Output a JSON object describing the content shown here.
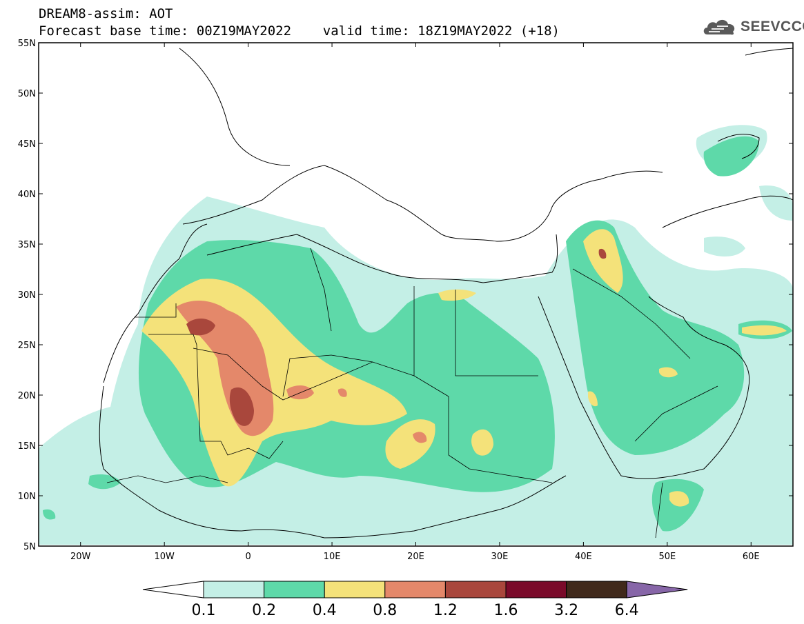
{
  "header": {
    "line1": "DREAM8-assim: AOT",
    "line2": "Forecast base time: 00Z19MAY2022    valid time: 18Z19MAY2022 (+18)"
  },
  "logo": {
    "text": "SEEVCCC",
    "icon": "cloud-icon",
    "color": "#555555"
  },
  "map": {
    "lon_range": [
      -25,
      65
    ],
    "lat_range": [
      5,
      55
    ],
    "lat_ticks": [
      {
        "value": 55,
        "label": "55N"
      },
      {
        "value": 50,
        "label": "50N"
      },
      {
        "value": 45,
        "label": "45N"
      },
      {
        "value": 40,
        "label": "40N"
      },
      {
        "value": 35,
        "label": "35N"
      },
      {
        "value": 30,
        "label": "30N"
      },
      {
        "value": 25,
        "label": "25N"
      },
      {
        "value": 20,
        "label": "20N"
      },
      {
        "value": 15,
        "label": "15N"
      },
      {
        "value": 10,
        "label": "10N"
      },
      {
        "value": 5,
        "label": "5N"
      }
    ],
    "lon_ticks": [
      {
        "value": -20,
        "label": "20W"
      },
      {
        "value": -10,
        "label": "10W"
      },
      {
        "value": 0,
        "label": "0"
      },
      {
        "value": 10,
        "label": "10E"
      },
      {
        "value": 20,
        "label": "20E"
      },
      {
        "value": 30,
        "label": "30E"
      },
      {
        "value": 40,
        "label": "40E"
      },
      {
        "value": 50,
        "label": "50E"
      },
      {
        "value": 60,
        "label": "60E"
      }
    ]
  },
  "colorbar": {
    "levels": [
      "0.1",
      "0.2",
      "0.4",
      "0.8",
      "1.2",
      "1.6",
      "3.2",
      "6.4"
    ],
    "colors": [
      "#ffffff",
      "#c4efe6",
      "#5ed9a9",
      "#f4e27a",
      "#e4886a",
      "#a9473c",
      "#7a0a2a",
      "#40291b",
      "#8766a8"
    ]
  }
}
